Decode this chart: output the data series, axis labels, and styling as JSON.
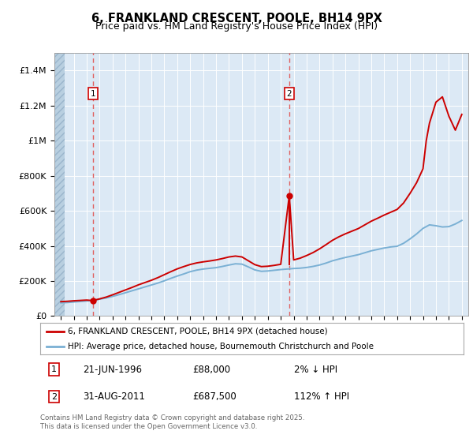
{
  "title": "6, FRANKLAND CRESCENT, POOLE, BH14 9PX",
  "subtitle": "Price paid vs. HM Land Registry's House Price Index (HPI)",
  "title_fontsize": 10.5,
  "subtitle_fontsize": 9,
  "sale1_year": 1996.47,
  "sale1_price": 88000,
  "sale1_label": "1",
  "sale1_date": "21-JUN-1996",
  "sale1_note": "2% ↓ HPI",
  "sale2_year": 2011.66,
  "sale2_price": 687500,
  "sale2_label": "2",
  "sale2_date": "31-AUG-2011",
  "sale2_note": "112% ↑ HPI",
  "hpi_years": [
    1994,
    1994.5,
    1995,
    1995.5,
    1996,
    1996.5,
    1997,
    1997.5,
    1998,
    1998.5,
    1999,
    1999.5,
    2000,
    2000.5,
    2001,
    2001.5,
    2002,
    2002.5,
    2003,
    2003.5,
    2004,
    2004.5,
    2005,
    2005.5,
    2006,
    2006.5,
    2007,
    2007.5,
    2008,
    2008.5,
    2009,
    2009.5,
    2010,
    2010.5,
    2011,
    2011.5,
    2012,
    2012.5,
    2013,
    2013.5,
    2014,
    2014.5,
    2015,
    2015.5,
    2016,
    2016.5,
    2017,
    2017.5,
    2018,
    2018.5,
    2019,
    2019.5,
    2020,
    2020.5,
    2021,
    2021.5,
    2022,
    2022.5,
    2023,
    2023.5,
    2024,
    2024.5,
    2025
  ],
  "hpi_values": [
    75000,
    77000,
    80000,
    83000,
    86000,
    90000,
    96000,
    103000,
    112000,
    122000,
    133000,
    144000,
    155000,
    166000,
    177000,
    188000,
    201000,
    215000,
    228000,
    240000,
    253000,
    262000,
    268000,
    272000,
    276000,
    283000,
    291000,
    298000,
    296000,
    280000,
    263000,
    255000,
    257000,
    261000,
    265000,
    268000,
    271000,
    273000,
    277000,
    283000,
    291000,
    302000,
    315000,
    325000,
    334000,
    342000,
    350000,
    361000,
    372000,
    380000,
    388000,
    394000,
    398000,
    415000,
    440000,
    468000,
    500000,
    520000,
    515000,
    508000,
    510000,
    525000,
    545000
  ],
  "red_years": [
    1994,
    1994.5,
    1995,
    1995.5,
    1996,
    1996.47,
    1997,
    1997.5,
    1998,
    1998.5,
    1999,
    1999.5,
    2000,
    2000.5,
    2001,
    2001.5,
    2002,
    2002.5,
    2003,
    2003.5,
    2004,
    2004.5,
    2005,
    2005.5,
    2006,
    2006.5,
    2007,
    2007.5,
    2008,
    2008.5,
    2009,
    2009.5,
    2010,
    2010.5,
    2011,
    2011.66,
    2012,
    2012.5,
    2013,
    2013.5,
    2014,
    2014.5,
    2015,
    2015.5,
    2016,
    2016.5,
    2017,
    2017.5,
    2018,
    2018.5,
    2019,
    2019.5,
    2020,
    2020.5,
    2021,
    2021.5,
    2022,
    2022.25,
    2022.5,
    2023,
    2023.5,
    2024,
    2024.5,
    2025
  ],
  "red_values": [
    82000,
    84000,
    87000,
    89000,
    91000,
    88000,
    98000,
    108000,
    121000,
    135000,
    149000,
    163000,
    178000,
    191000,
    204000,
    219000,
    236000,
    253000,
    269000,
    282000,
    294000,
    303000,
    309000,
    314000,
    320000,
    328000,
    337000,
    342000,
    337000,
    315000,
    293000,
    282000,
    284000,
    289000,
    295000,
    687500,
    320000,
    330000,
    345000,
    362000,
    383000,
    407000,
    432000,
    452000,
    469000,
    484000,
    499000,
    520000,
    541000,
    558000,
    576000,
    592000,
    608000,
    645000,
    700000,
    760000,
    840000,
    1000000,
    1100000,
    1220000,
    1250000,
    1140000,
    1060000,
    1150000
  ],
  "chart_bg": "#dce9f5",
  "hatch_color": "#b8cfe0",
  "red_color": "#cc0000",
  "blue_color": "#7ab0d4",
  "grid_color": "#ffffff",
  "dashed_color": "#e06060",
  "ylim": [
    0,
    1500000
  ],
  "xlim_left": 1993.5,
  "xlim_right": 2025.5,
  "hatch_xend": 1994.3,
  "yticks": [
    0,
    200000,
    400000,
    600000,
    800000,
    1000000,
    1200000,
    1400000
  ],
  "ytick_labels": [
    "£0",
    "£200K",
    "£400K",
    "£600K",
    "£800K",
    "£1M",
    "£1.2M",
    "£1.4M"
  ],
  "legend_line1": "6, FRANKLAND CRESCENT, POOLE, BH14 9PX (detached house)",
  "legend_line2": "HPI: Average price, detached house, Bournemouth Christchurch and Poole",
  "footnote": "Contains HM Land Registry data © Crown copyright and database right 2025.\nThis data is licensed under the Open Government Licence v3.0.",
  "table_rows": [
    [
      "1",
      "21-JUN-1996",
      "£88,000",
      "2% ↓ HPI"
    ],
    [
      "2",
      "31-AUG-2011",
      "£687,500",
      "112% ↑ HPI"
    ]
  ]
}
